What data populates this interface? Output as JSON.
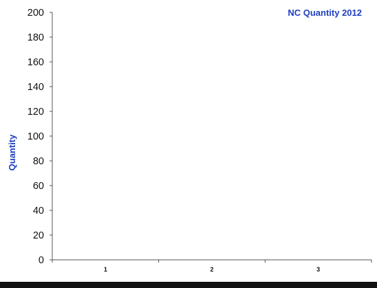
{
  "chart_data": {
    "type": "bar",
    "title": "NC Quantity 2012",
    "xlabel": "",
    "ylabel": "Quantity",
    "categories": [
      "1",
      "2",
      "3"
    ],
    "values": [
      0,
      0,
      0
    ],
    "ylim": [
      0,
      200
    ],
    "yticks": [
      0,
      20,
      40,
      60,
      80,
      100,
      120,
      140,
      160,
      180,
      200
    ],
    "grid": false,
    "legend": "none"
  },
  "colors": {
    "title": "#1f3fbf",
    "axis_label": "#1f3fbf",
    "axis": "#555555",
    "text": "#111111"
  }
}
